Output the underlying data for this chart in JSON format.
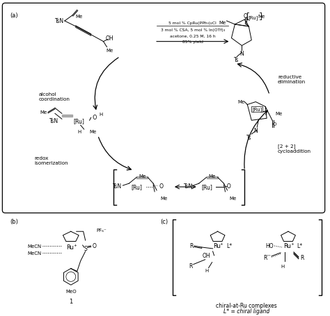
{
  "figure_width": 4.74,
  "figure_height": 4.56,
  "dpi": 100,
  "bg_color": "#ffffff",
  "panel_a_label": "(a)",
  "panel_b_label": "(b)",
  "panel_c_label": "(c)",
  "reaction_conditions_1": "5 mol % CpRu(PPh₃)₂Cl",
  "reaction_conditions_2": "3 mol % CSA, 5 mol % In(OTf)₃",
  "reaction_conditions_3": "acetone, 0.25 M, 16 h",
  "reaction_conditions_4": "85% yield",
  "label_alcohol_coord": "alcohol\ncoordination",
  "label_reductive_elim": "reductive\nelimination",
  "label_redox_isom": "redox\nisomerization",
  "label_cycloaddition": "[2 + 2]\ncycloaddition",
  "label_1": "1",
  "label_chiral_ru": "chiral-at-Ru complexes",
  "label_chiral_ligand": "L* = chiral ligand",
  "label_pf6": "PF₆⁻",
  "text_color": "#000000"
}
